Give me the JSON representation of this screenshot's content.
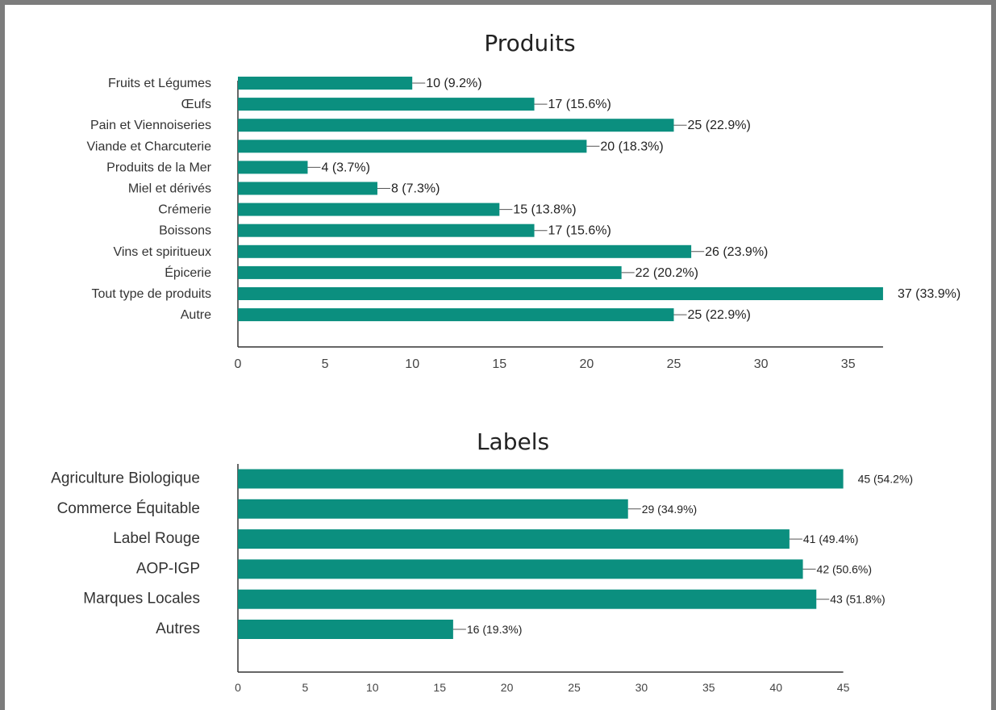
{
  "chart_data": [
    {
      "type": "bar",
      "orientation": "horizontal",
      "title": "Produits",
      "categories": [
        "Fruits et Légumes",
        "Œufs",
        "Pain et Viennoiseries",
        "Viande et Charcuterie",
        "Produits de la Mer",
        "Miel et dérivés",
        "Crémerie",
        "Boissons",
        "Vins et spiritueux",
        "Épicerie",
        "Tout type de produits",
        "Autre"
      ],
      "values": [
        10,
        17,
        25,
        20,
        4,
        8,
        15,
        17,
        26,
        22,
        37,
        25
      ],
      "data_labels": [
        "10 (9.2%)",
        "17 (15.6%)",
        "25 (22.9%)",
        "20 (18.3%)",
        "4 (3.7%)",
        "8 (7.3%)",
        "15 (13.8%)",
        "17 (15.6%)",
        "26 (23.9%)",
        "22 (20.2%)",
        "37 (33.9%)",
        "25 (22.9%)"
      ],
      "xticks": [
        "0",
        "5",
        "10",
        "15",
        "20",
        "25",
        "30",
        "35"
      ],
      "xlim": [
        0,
        37
      ],
      "color": "#0b8f7f",
      "grid": false,
      "legend": "none"
    },
    {
      "type": "bar",
      "orientation": "horizontal",
      "title": "Labels",
      "categories": [
        "Agriculture Biologique",
        "Commerce Équitable",
        "Label Rouge",
        "AOP-IGP",
        "Marques Locales",
        "Autres"
      ],
      "values": [
        45,
        29,
        41,
        42,
        43,
        16
      ],
      "data_labels": [
        "45 (54.2%)",
        "29 (34.9%)",
        "41 (49.4%)",
        "42 (50.6%)",
        "43 (51.8%)",
        "16 (19.3%)"
      ],
      "xticks": [
        "0",
        "5",
        "10",
        "15",
        "20",
        "25",
        "30",
        "35",
        "40",
        "45"
      ],
      "xlim": [
        0,
        45
      ],
      "color": "#0b8f7f",
      "grid": false,
      "legend": "none"
    }
  ]
}
